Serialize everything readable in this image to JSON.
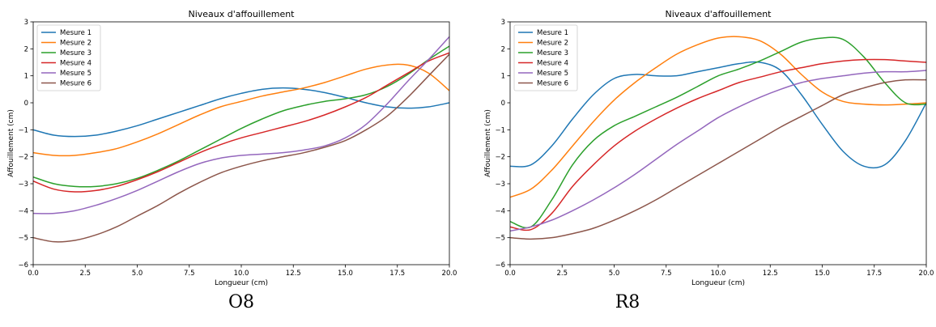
{
  "chart_data": [
    {
      "type": "line",
      "title": "Niveaux d'affouillement",
      "xlabel": "Longueur (cm)",
      "ylabel": "Affouillement (cm)",
      "xlim": [
        0,
        20
      ],
      "ylim": [
        -6,
        3
      ],
      "xticks": [
        "0.0",
        "2.5",
        "5.0",
        "7.5",
        "10.0",
        "12.5",
        "15.0",
        "17.5",
        "20.0"
      ],
      "yticks": [
        "3",
        "2",
        "1",
        "0",
        "−1",
        "−2",
        "−3",
        "−4",
        "−5",
        "−6"
      ],
      "grid": false,
      "legend_position": "upper-left",
      "caption": "O8",
      "series": [
        {
          "name": "Mesure 1",
          "color": "#1f77b4",
          "x": [
            0,
            1,
            2,
            3,
            4,
            5,
            6,
            7,
            8,
            9,
            10,
            11,
            12,
            13,
            14,
            15,
            16,
            17,
            18,
            19,
            20
          ],
          "y": [
            -1.0,
            -1.2,
            -1.25,
            -1.2,
            -1.05,
            -0.85,
            -0.6,
            -0.35,
            -0.1,
            0.15,
            0.35,
            0.5,
            0.55,
            0.5,
            0.38,
            0.2,
            0.0,
            -0.15,
            -0.2,
            -0.15,
            0.0
          ]
        },
        {
          "name": "Mesure 2",
          "color": "#ff7f0e",
          "x": [
            0,
            1,
            2,
            3,
            4,
            5,
            6,
            7,
            8,
            9,
            10,
            11,
            12,
            13,
            14,
            15,
            16,
            17,
            18,
            19,
            20
          ],
          "y": [
            -1.85,
            -1.95,
            -1.95,
            -1.85,
            -1.7,
            -1.45,
            -1.15,
            -0.8,
            -0.45,
            -0.15,
            0.05,
            0.25,
            0.4,
            0.55,
            0.75,
            1.0,
            1.25,
            1.4,
            1.4,
            1.1,
            0.45
          ]
        },
        {
          "name": "Mesure 3",
          "color": "#2ca02c",
          "x": [
            0,
            1,
            2,
            3,
            4,
            5,
            6,
            7,
            8,
            9,
            10,
            11,
            12,
            13,
            14,
            15,
            16,
            17,
            18,
            19,
            20
          ],
          "y": [
            -2.75,
            -3.0,
            -3.1,
            -3.1,
            -3.0,
            -2.8,
            -2.5,
            -2.15,
            -1.75,
            -1.35,
            -0.95,
            -0.6,
            -0.3,
            -0.1,
            0.05,
            0.15,
            0.3,
            0.6,
            1.05,
            1.6,
            2.1
          ]
        },
        {
          "name": "Mesure 4",
          "color": "#d62728",
          "x": [
            0,
            1,
            2,
            3,
            4,
            5,
            6,
            7,
            8,
            9,
            10,
            11,
            12,
            13,
            14,
            15,
            16,
            17,
            18,
            19,
            20
          ],
          "y": [
            -2.9,
            -3.2,
            -3.3,
            -3.25,
            -3.1,
            -2.85,
            -2.55,
            -2.2,
            -1.85,
            -1.55,
            -1.3,
            -1.1,
            -0.9,
            -0.7,
            -0.45,
            -0.15,
            0.2,
            0.65,
            1.1,
            1.55,
            1.85
          ]
        },
        {
          "name": "Mesure 5",
          "color": "#9467bd",
          "x": [
            0,
            1,
            2,
            3,
            4,
            5,
            6,
            7,
            8,
            9,
            10,
            11,
            12,
            13,
            14,
            15,
            16,
            17,
            18,
            19,
            20
          ],
          "y": [
            -4.1,
            -4.1,
            -4.0,
            -3.8,
            -3.55,
            -3.25,
            -2.9,
            -2.55,
            -2.25,
            -2.05,
            -1.95,
            -1.9,
            -1.85,
            -1.75,
            -1.6,
            -1.3,
            -0.8,
            -0.05,
            0.8,
            1.6,
            2.45
          ]
        },
        {
          "name": "Mesure 6",
          "color": "#8c564b",
          "x": [
            0,
            1,
            2,
            3,
            4,
            5,
            6,
            7,
            8,
            9,
            10,
            11,
            12,
            13,
            14,
            15,
            16,
            17,
            18,
            19,
            20
          ],
          "y": [
            -5.0,
            -5.15,
            -5.1,
            -4.9,
            -4.6,
            -4.2,
            -3.8,
            -3.35,
            -2.95,
            -2.6,
            -2.35,
            -2.15,
            -2.0,
            -1.85,
            -1.65,
            -1.4,
            -1.0,
            -0.5,
            0.2,
            1.0,
            1.8
          ]
        }
      ]
    },
    {
      "type": "line",
      "title": "Niveaux d'affouillement",
      "xlabel": "Longueur (cm)",
      "ylabel": "Affouillement (cm)",
      "xlim": [
        0,
        20
      ],
      "ylim": [
        -6,
        3
      ],
      "xticks": [
        "0.0",
        "2.5",
        "5.0",
        "7.5",
        "10.0",
        "12.5",
        "15.0",
        "17.5",
        "20.0"
      ],
      "yticks": [
        "3",
        "2",
        "1",
        "0",
        "−1",
        "−2",
        "−3",
        "−4",
        "−5",
        "−6"
      ],
      "grid": false,
      "legend_position": "upper-left",
      "caption": "R8",
      "series": [
        {
          "name": "Mesure 1",
          "color": "#1f77b4",
          "x": [
            0,
            1,
            2,
            3,
            4,
            5,
            6,
            7,
            8,
            9,
            10,
            11,
            12,
            13,
            14,
            15,
            16,
            17,
            18,
            19,
            20
          ],
          "y": [
            -2.35,
            -2.3,
            -1.6,
            -0.6,
            0.3,
            0.9,
            1.05,
            1.0,
            1.0,
            1.15,
            1.3,
            1.45,
            1.5,
            1.2,
            0.3,
            -0.8,
            -1.8,
            -2.35,
            -2.3,
            -1.4,
            0.0
          ]
        },
        {
          "name": "Mesure 2",
          "color": "#ff7f0e",
          "x": [
            0,
            1,
            2,
            3,
            4,
            5,
            6,
            7,
            8,
            9,
            10,
            11,
            12,
            13,
            14,
            15,
            16,
            17,
            18,
            19,
            20
          ],
          "y": [
            -3.5,
            -3.2,
            -2.5,
            -1.6,
            -0.7,
            0.1,
            0.75,
            1.3,
            1.8,
            2.15,
            2.4,
            2.45,
            2.3,
            1.8,
            1.05,
            0.4,
            0.05,
            -0.05,
            -0.08,
            -0.05,
            0.0
          ]
        },
        {
          "name": "Mesure 3",
          "color": "#2ca02c",
          "x": [
            0,
            1,
            2,
            3,
            4,
            5,
            6,
            7,
            8,
            9,
            10,
            11,
            12,
            13,
            14,
            15,
            16,
            17,
            18,
            19,
            20
          ],
          "y": [
            -4.4,
            -4.6,
            -3.6,
            -2.3,
            -1.4,
            -0.85,
            -0.5,
            -0.15,
            0.2,
            0.6,
            1.0,
            1.25,
            1.55,
            1.9,
            2.25,
            2.4,
            2.35,
            1.7,
            0.75,
            0.0,
            -0.05
          ]
        },
        {
          "name": "Mesure 4",
          "color": "#d62728",
          "x": [
            0,
            1,
            2,
            3,
            4,
            5,
            6,
            7,
            8,
            9,
            10,
            11,
            12,
            13,
            14,
            15,
            16,
            17,
            18,
            19,
            20
          ],
          "y": [
            -4.6,
            -4.7,
            -4.1,
            -3.1,
            -2.3,
            -1.6,
            -1.05,
            -0.6,
            -0.2,
            0.15,
            0.45,
            0.75,
            0.95,
            1.15,
            1.3,
            1.45,
            1.55,
            1.6,
            1.6,
            1.55,
            1.5
          ]
        },
        {
          "name": "Mesure 5",
          "color": "#9467bd",
          "x": [
            0,
            1,
            2,
            3,
            4,
            5,
            6,
            7,
            8,
            9,
            10,
            11,
            12,
            13,
            14,
            15,
            16,
            17,
            18,
            19,
            20
          ],
          "y": [
            -4.75,
            -4.6,
            -4.35,
            -4.0,
            -3.6,
            -3.15,
            -2.65,
            -2.1,
            -1.55,
            -1.05,
            -0.55,
            -0.15,
            0.2,
            0.5,
            0.75,
            0.9,
            1.0,
            1.1,
            1.15,
            1.15,
            1.2
          ]
        },
        {
          "name": "Mesure 6",
          "color": "#8c564b",
          "x": [
            0,
            1,
            2,
            3,
            4,
            5,
            6,
            7,
            8,
            9,
            10,
            11,
            12,
            13,
            14,
            15,
            16,
            17,
            18,
            19,
            20
          ],
          "y": [
            -5.0,
            -5.05,
            -5.0,
            -4.85,
            -4.65,
            -4.35,
            -4.0,
            -3.6,
            -3.15,
            -2.7,
            -2.25,
            -1.8,
            -1.35,
            -0.9,
            -0.5,
            -0.1,
            0.3,
            0.55,
            0.75,
            0.85,
            0.85
          ]
        }
      ]
    }
  ]
}
